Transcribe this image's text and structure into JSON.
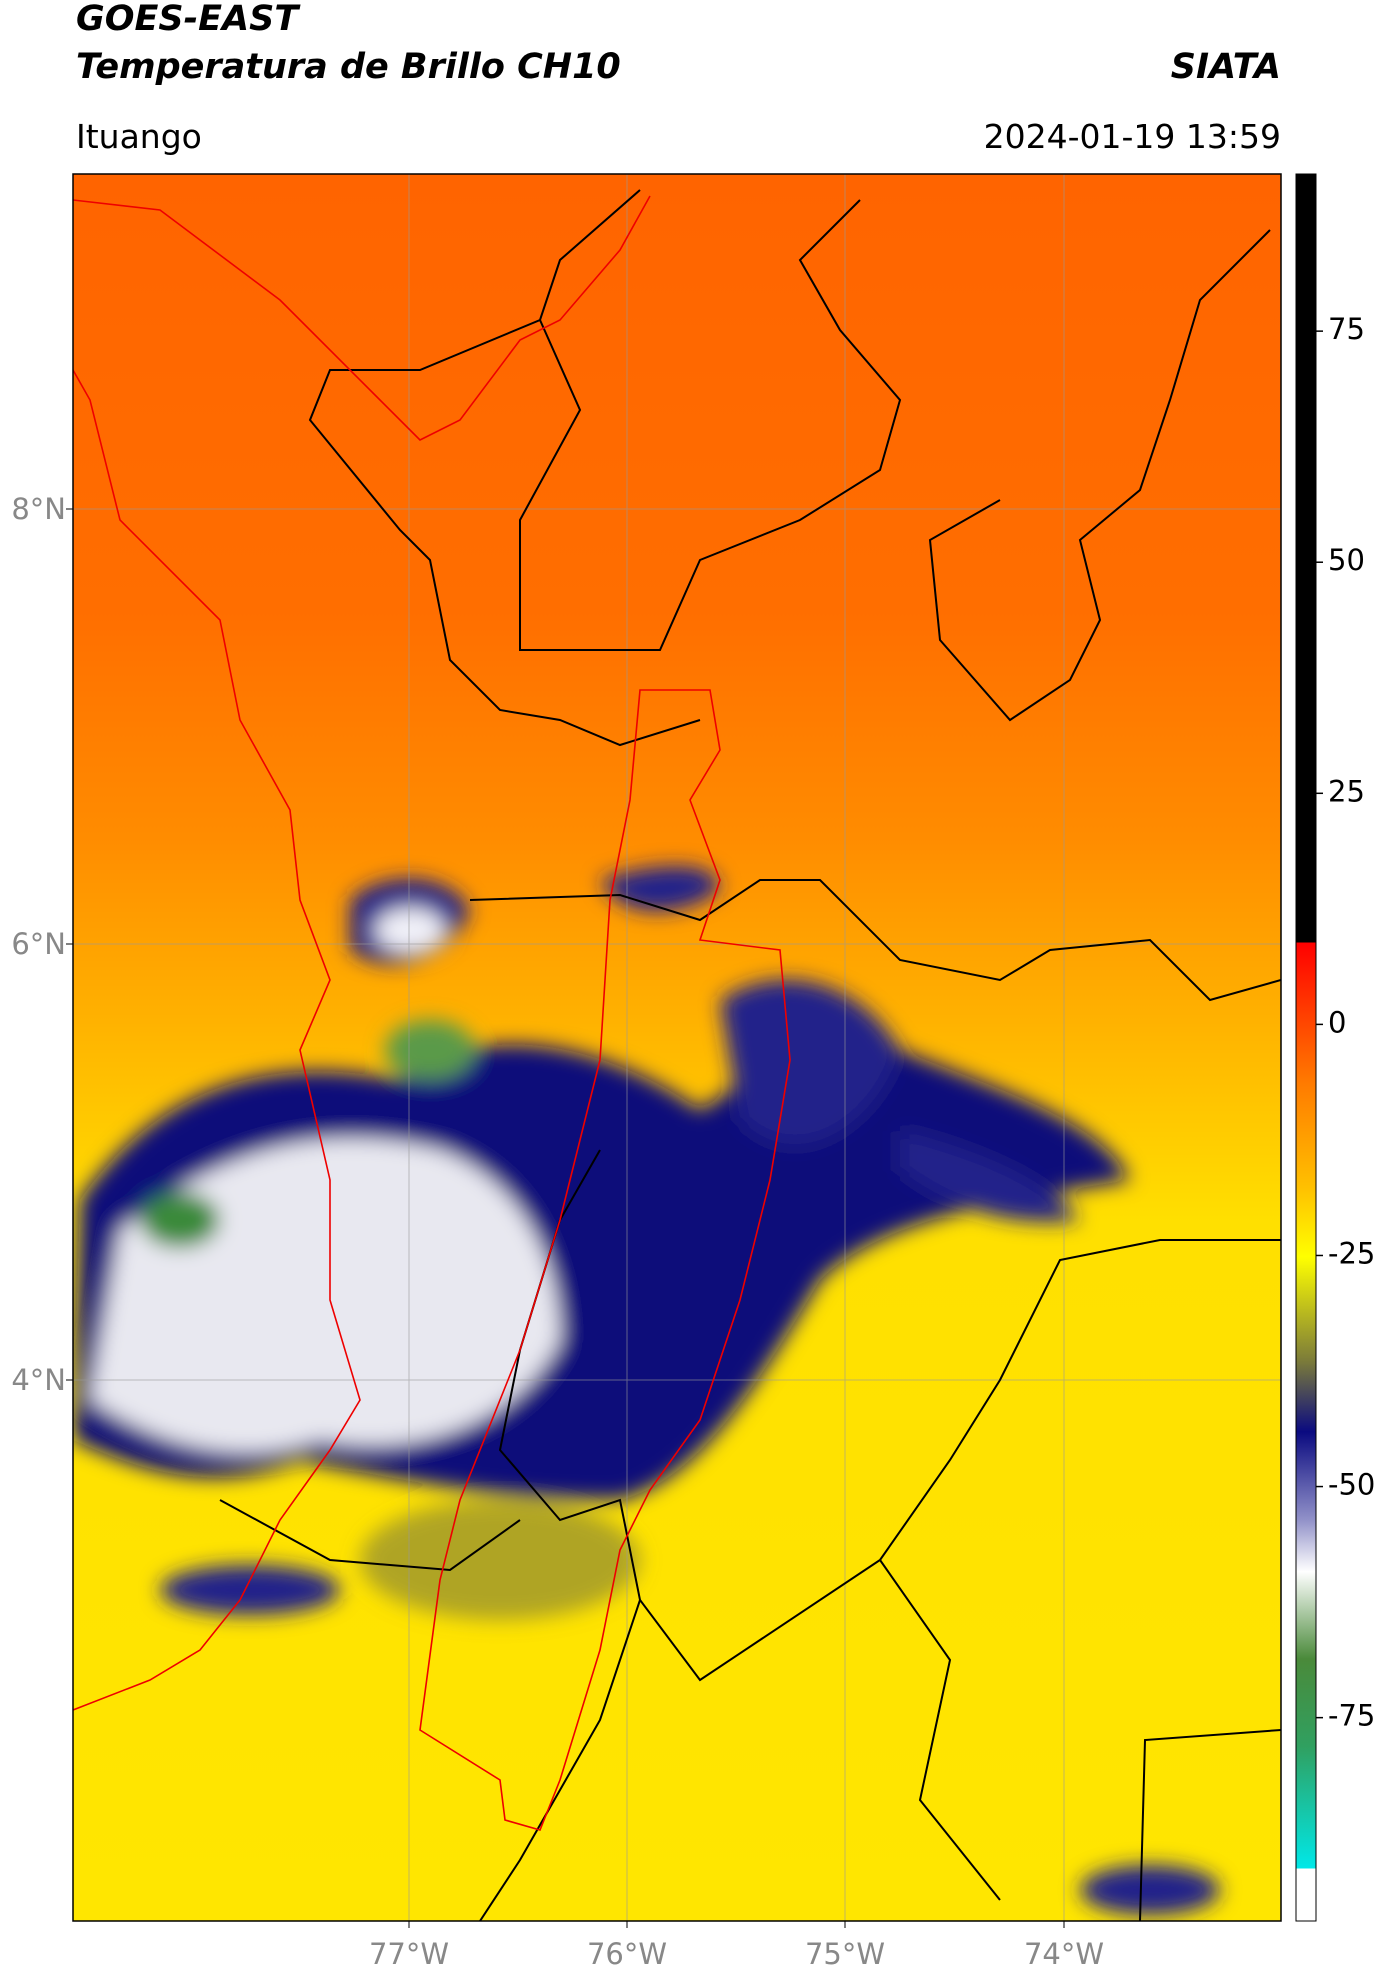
{
  "header": {
    "title_line1": "GOES-EAST",
    "title_line2": "Temperatura de Brillo CH10",
    "org": "SIATA",
    "location": "Ituango",
    "datetime": "2024-01-19 13:59"
  },
  "map": {
    "lat_labels": [
      "8°N",
      "6°N",
      "4°N"
    ],
    "lon_labels": [
      "77°W",
      "76°W",
      "75°W",
      "74°W"
    ]
  },
  "colorbar": {
    "range": [
      -97,
      92
    ],
    "ticks": [
      75,
      50,
      25,
      0,
      -25,
      -50,
      -75
    ]
  }
}
